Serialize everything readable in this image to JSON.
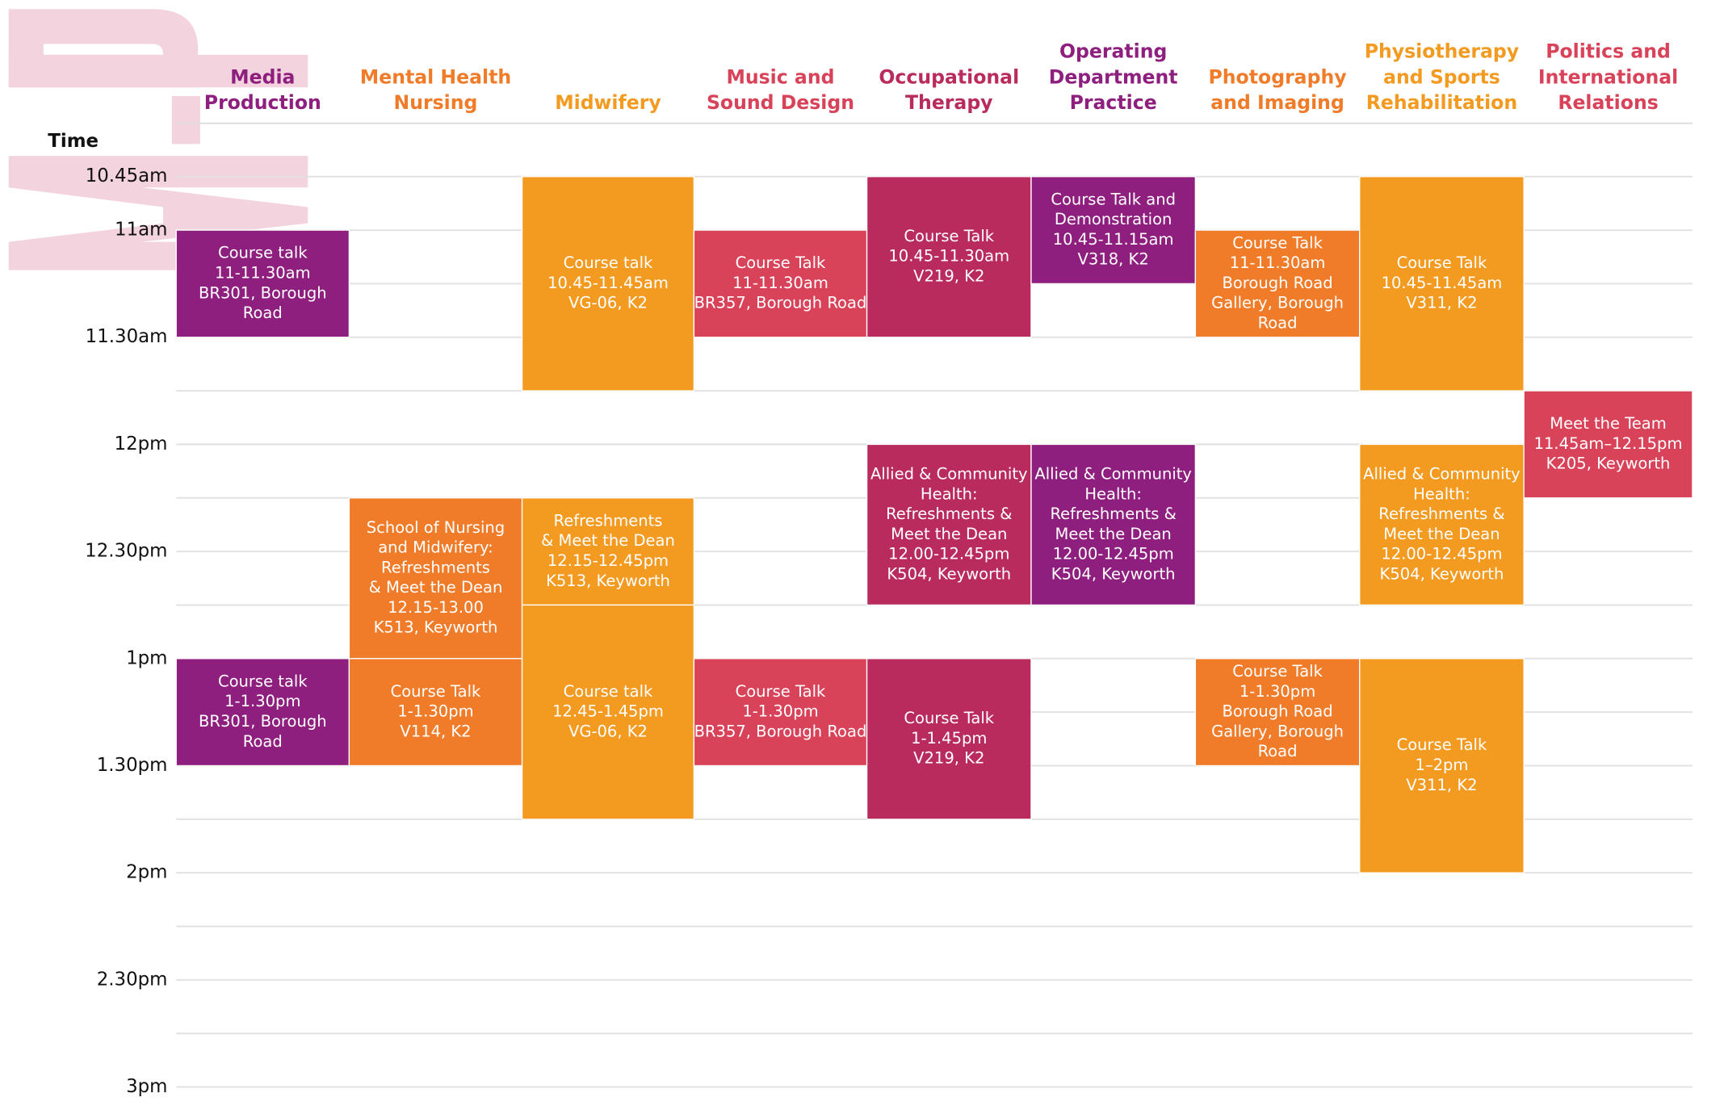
{
  "time_heading": "Time",
  "times": [
    "10.45am",
    "11am",
    "11.30am",
    "12pm",
    "12.30pm",
    "1pm",
    "1.30pm",
    "2pm",
    "2.30pm",
    "3pm"
  ],
  "columns": [
    {
      "name": [
        "Media",
        "Production"
      ],
      "color": "#8e1f7f",
      "events": [
        {
          "lines": [
            "Course talk",
            "11-11.30am",
            "BR301, Borough",
            "Road"
          ],
          "color": "#8e1f7f"
        },
        {
          "lines": [
            "Course talk",
            "1-1.30pm",
            "BR301, Borough",
            "Road"
          ],
          "color": "#8e1f7f"
        }
      ]
    },
    {
      "name": [
        "Mental Health",
        "Nursing"
      ],
      "color": "#f07c2a",
      "events": [
        {
          "lines": [
            "School of Nursing",
            "and Midwifery:",
            "Refreshments",
            "& Meet the Dean",
            "12.15-13.00",
            "K513, Keyworth"
          ],
          "color": "#f07c2a"
        },
        {
          "lines": [
            "Course Talk",
            "1-1.30pm",
            "V114, K2"
          ],
          "color": "#f07c2a"
        }
      ]
    },
    {
      "name": [
        "Midwifery"
      ],
      "color": "#f39a21",
      "events": [
        {
          "lines": [
            "Course talk",
            "10.45-11.45am",
            "VG-06, K2"
          ],
          "color": "#f39a21"
        },
        {
          "lines": [
            "Refreshments",
            "& Meet the Dean",
            "12.15-12.45pm",
            "K513, Keyworth"
          ],
          "color": "#f39a21"
        },
        {
          "lines": [
            "Course talk",
            "12.45-1.45pm",
            "VG-06, K2"
          ],
          "color": "#f39a21"
        }
      ]
    },
    {
      "name": [
        "Music and",
        "Sound Design"
      ],
      "color": "#d9435a",
      "events": [
        {
          "lines": [
            "Course Talk",
            "11-11.30am",
            "BR357, Borough Road"
          ],
          "color": "#d9435a"
        },
        {
          "lines": [
            "Course Talk",
            "1-1.30pm",
            "BR357, Borough Road"
          ],
          "color": "#d9435a"
        }
      ]
    },
    {
      "name": [
        "Occupational",
        "Therapy"
      ],
      "color": "#b92b5c",
      "events": [
        {
          "lines": [
            "Course Talk",
            "10.45-11.30am",
            "V219, K2"
          ],
          "color": "#b92b5c"
        },
        {
          "lines": [
            "Allied & Community",
            "Health:",
            "Refreshments &",
            "Meet the Dean",
            "12.00-12.45pm",
            "K504, Keyworth"
          ],
          "color": "#b92b5c"
        },
        {
          "lines": [
            "Course Talk",
            "1-1.45pm",
            "V219, K2"
          ],
          "color": "#b92b5c"
        }
      ]
    },
    {
      "name": [
        "Operating",
        "Department",
        "Practice"
      ],
      "color": "#8e1f7f",
      "events": [
        {
          "lines": [
            "Course Talk and",
            "Demonstration",
            "10.45-11.15am",
            "V318, K2"
          ],
          "color": "#8e1f7f"
        },
        {
          "lines": [
            "Allied & Community",
            "Health:",
            "Refreshments &",
            "Meet the Dean",
            "12.00-12.45pm",
            "K504, Keyworth"
          ],
          "color": "#8e1f7f"
        }
      ]
    },
    {
      "name": [
        "Photography",
        "and Imaging"
      ],
      "color": "#f07c2a",
      "events": [
        {
          "lines": [
            "Course Talk",
            "11-11.30am",
            "Borough Road",
            "Gallery, Borough",
            "Road"
          ],
          "color": "#f07c2a"
        },
        {
          "lines": [
            "Course Talk",
            "1-1.30pm",
            "Borough Road",
            "Gallery, Borough",
            "Road"
          ],
          "color": "#f07c2a"
        }
      ]
    },
    {
      "name": [
        "Physiotherapy",
        "and Sports",
        "Rehabilitation"
      ],
      "color": "#f39a21",
      "events": [
        {
          "lines": [
            "Course Talk",
            "10.45-11.45am",
            "V311, K2"
          ],
          "color": "#f39a21"
        },
        {
          "lines": [
            "Allied & Community",
            "Health:",
            "Refreshments &",
            "Meet the Dean",
            "12.00-12.45pm",
            "K504, Keyworth"
          ],
          "color": "#f39a21"
        },
        {
          "lines": [
            "Course Talk",
            "1–2pm",
            "V311, K2"
          ],
          "color": "#f39a21"
        }
      ]
    },
    {
      "name": [
        "Politics and",
        "International",
        "Relations"
      ],
      "color": "#d9435a",
      "events": [
        {
          "lines": [
            "Meet the Team",
            "11.45am–12.15pm",
            "K205, Keyworth"
          ],
          "color": "#d9435a"
        }
      ]
    }
  ]
}
